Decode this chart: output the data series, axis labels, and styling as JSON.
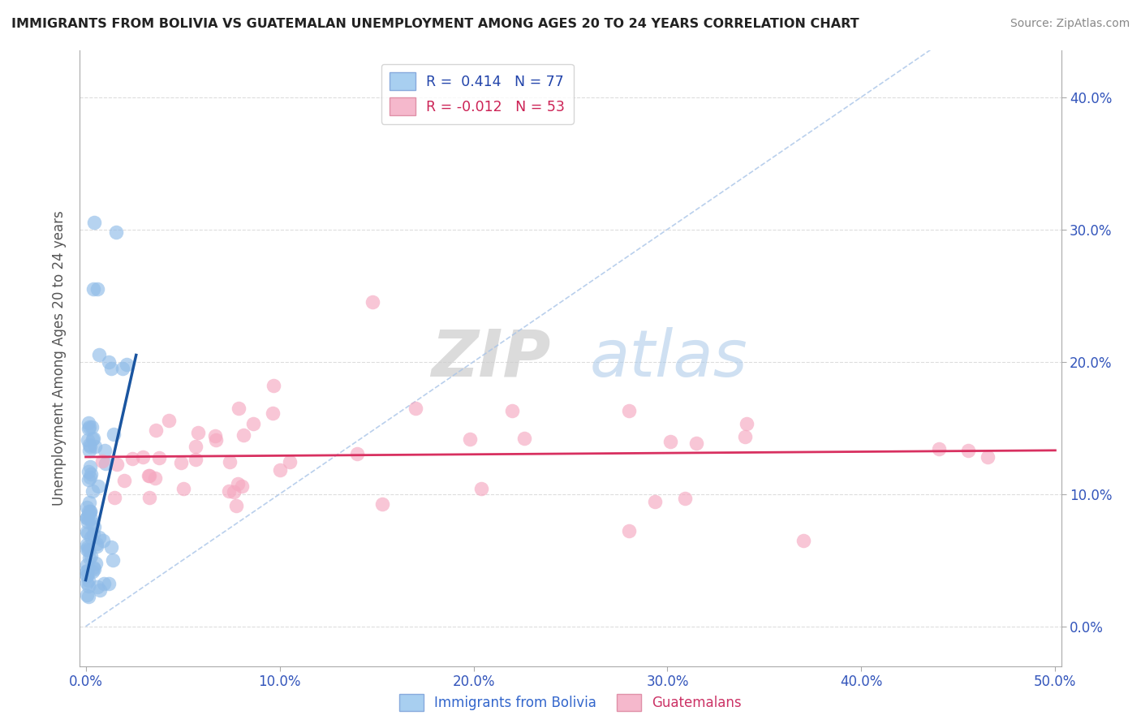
{
  "title": "IMMIGRANTS FROM BOLIVIA VS GUATEMALAN UNEMPLOYMENT AMONG AGES 20 TO 24 YEARS CORRELATION CHART",
  "source": "Source: ZipAtlas.com",
  "xlim": [
    -0.003,
    0.503
  ],
  "ylim": [
    -0.03,
    0.435
  ],
  "xtick_vals": [
    0.0,
    0.1,
    0.2,
    0.3,
    0.4,
    0.5
  ],
  "ytick_vals": [
    0.0,
    0.1,
    0.2,
    0.3,
    0.4
  ],
  "bolivia_color": "#90bce8",
  "guatemalan_color": "#f5a8c0",
  "bolivia_line_color": "#1a55a0",
  "guatemalan_line_color": "#d83060",
  "diag_line_color": "#a8c4e8",
  "watermark_zip_color": "#c8d8ee",
  "watermark_atlas_color": "#a8c8e8",
  "ylabel": "Unemployment Among Ages 20 to 24 years",
  "legend_r1": "R =  0.414   N = 77",
  "legend_r2": "R = -0.012   N = 53"
}
